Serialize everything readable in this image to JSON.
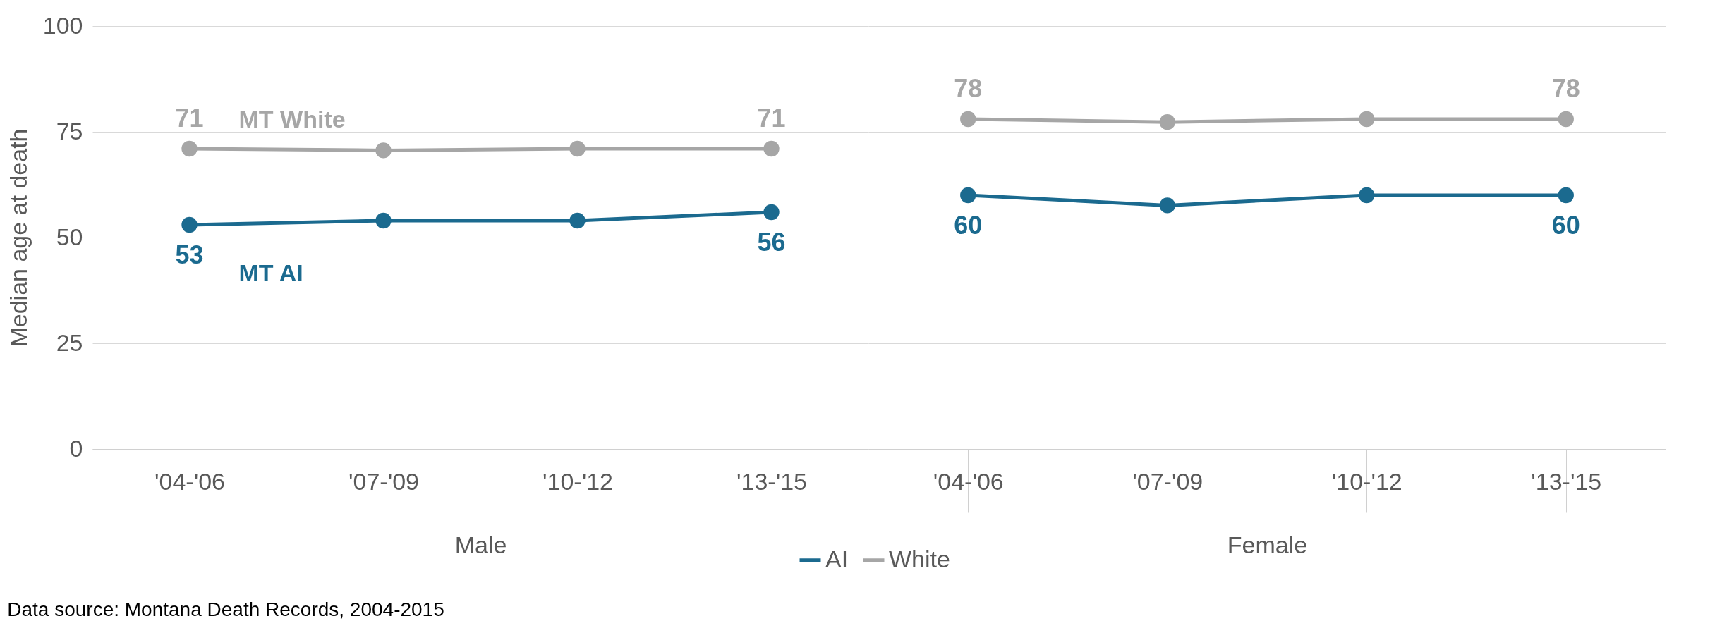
{
  "chart_data": [
    {
      "type": "line",
      "xlabel": "Male",
      "ylabel": "Median age at death",
      "categories": [
        "'04-'06",
        "'07-'09",
        "'10-'12",
        "'13-'15"
      ],
      "ylim": [
        0,
        100
      ],
      "yticks": [
        0,
        25,
        50,
        75,
        100
      ],
      "grid": "y",
      "legend": "bottom",
      "marker": "circle",
      "series": [
        {
          "name": "AI",
          "color": "#1b6a8f",
          "values": [
            53,
            54,
            54,
            56
          ],
          "value_labels": [
            "53",
            null,
            null,
            "56"
          ]
        },
        {
          "name": "White",
          "color": "#a6a6a6",
          "values": [
            71,
            70.6,
            71,
            71
          ],
          "value_labels": [
            "71",
            null,
            null,
            "71"
          ]
        }
      ],
      "annotations": [
        "MT AI",
        "MT White",
        "Data source: Montana Death Records, 2004-2015"
      ]
    },
    {
      "type": "line",
      "xlabel": "Female",
      "categories": [
        "'04-'06",
        "'07-'09",
        "'10-'12",
        "'13-'15"
      ],
      "ylim": [
        0,
        100
      ],
      "yticks": [
        0,
        25,
        50,
        75,
        100
      ],
      "grid": "y",
      "legend": "bottom",
      "marker": "circle",
      "tick_labels": "x",
      "series": [
        {
          "name": "AI",
          "color": "#1b6a8f",
          "values": [
            60,
            57.6,
            60,
            60
          ],
          "value_labels": [
            "60",
            null,
            null,
            "60"
          ]
        },
        {
          "name": "White",
          "color": "#a6a6a6",
          "values": [
            78,
            77.3,
            78,
            78
          ],
          "value_labels": [
            "78",
            null,
            null,
            "78"
          ]
        }
      ]
    }
  ]
}
